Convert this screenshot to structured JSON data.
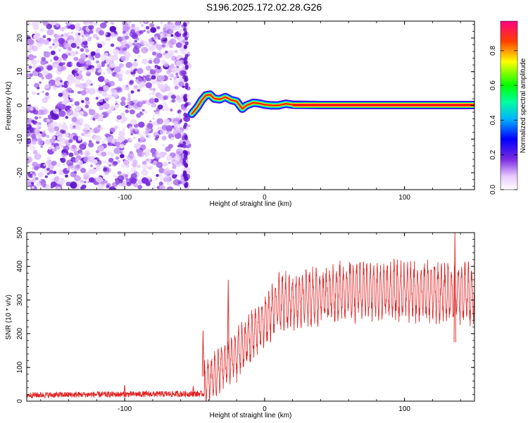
{
  "page": {
    "title": "S196.2025.172.02.28.G26"
  },
  "chart_data": [
    {
      "type": "heatmap",
      "title": "S196.2025.172.02.28.G26",
      "xlabel": "Height of straight line (km)",
      "ylabel": "Frequency (Hz)",
      "xlim": [
        -170,
        150
      ],
      "ylim": [
        -25,
        25
      ],
      "x_ticks": [
        -100,
        0,
        100
      ],
      "y_ticks": [
        -20,
        -10,
        0,
        10,
        20
      ],
      "colorbar": {
        "label": "Normalized spectral amplitude",
        "range": [
          0.0,
          0.97
        ],
        "ticks": [
          "0.0",
          "0.2",
          "0.4",
          "0.6",
          "0.8"
        ],
        "tick_values": [
          0.0,
          0.2,
          0.4,
          0.6,
          0.8
        ]
      },
      "noise_region_x": [
        -170,
        -54
      ],
      "signal_track": [
        {
          "x": -52,
          "y": -2.5
        },
        {
          "x": -48,
          "y": -0.5
        },
        {
          "x": -45,
          "y": 1.5
        },
        {
          "x": -42,
          "y": 3.0
        },
        {
          "x": -39,
          "y": 3.2
        },
        {
          "x": -36,
          "y": 2.0
        },
        {
          "x": -32,
          "y": 1.8
        },
        {
          "x": -28,
          "y": 2.5
        },
        {
          "x": -24,
          "y": 1.6
        },
        {
          "x": -20,
          "y": 1.2
        },
        {
          "x": -16,
          "y": -1.0
        },
        {
          "x": -13,
          "y": 0.0
        },
        {
          "x": -8,
          "y": 0.8
        },
        {
          "x": -4,
          "y": 0.6
        },
        {
          "x": 0,
          "y": 0.2
        },
        {
          "x": 5,
          "y": 0.0
        },
        {
          "x": 10,
          "y": 0.0
        },
        {
          "x": 15,
          "y": 0.5
        },
        {
          "x": 20,
          "y": 0.2
        },
        {
          "x": 40,
          "y": 0.1
        },
        {
          "x": 80,
          "y": 0.1
        },
        {
          "x": 120,
          "y": 0.1
        },
        {
          "x": 150,
          "y": 0.1
        }
      ],
      "colors": [
        "#ffffff",
        "#d9b3ff",
        "#7a2be0",
        "#0000ff",
        "#00e0ff",
        "#00ff00",
        "#ffff00",
        "#ff0000"
      ]
    },
    {
      "type": "line",
      "xlabel": "Height of straight line (km)",
      "ylabel": "SNR (10 * v/v)",
      "xlim": [
        -170,
        150
      ],
      "ylim": [
        0,
        500
      ],
      "x_ticks": [
        -100,
        0,
        100
      ],
      "y_ticks": [
        0,
        100,
        200,
        300,
        400,
        500
      ],
      "series_color": "#e02020",
      "segments": [
        {
          "x0": -170,
          "x1": -43,
          "base_start": 18,
          "base_end": 22,
          "spread": 18
        },
        {
          "x0": -43,
          "x1": -20,
          "base_start": 50,
          "base_end": 140,
          "spread": 120
        },
        {
          "x0": -20,
          "x1": 10,
          "base_start": 140,
          "base_end": 290,
          "spread": 140
        },
        {
          "x0": 10,
          "x1": 60,
          "base_start": 290,
          "base_end": 330,
          "spread": 150
        },
        {
          "x0": 60,
          "x1": 150,
          "base_start": 330,
          "base_end": 320,
          "spread": 160
        }
      ],
      "peaks": [
        {
          "x": -44,
          "y": 210
        },
        {
          "x": -26,
          "y": 360
        },
        {
          "x": 136,
          "y": 500
        },
        {
          "x": -100,
          "y": 48
        },
        {
          "x": -51,
          "y": 45
        }
      ]
    }
  ]
}
